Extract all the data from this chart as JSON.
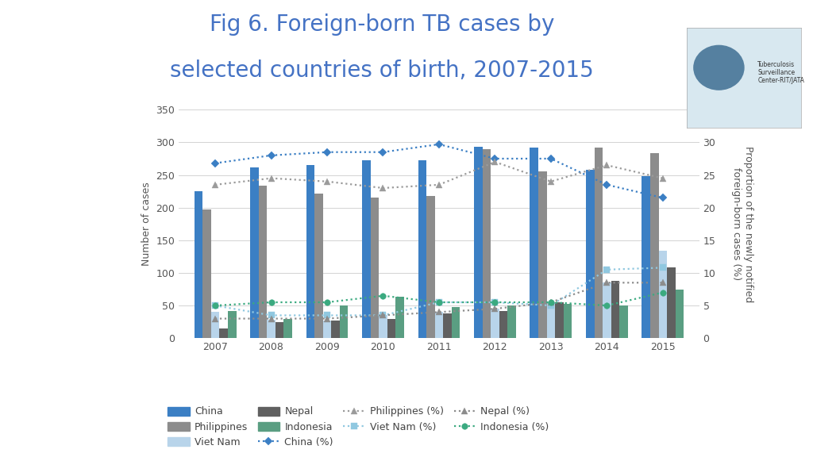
{
  "years": [
    2007,
    2008,
    2009,
    2010,
    2011,
    2012,
    2013,
    2014,
    2015
  ],
  "china": [
    225,
    262,
    265,
    272,
    272,
    293,
    292,
    258,
    248
  ],
  "philippines": [
    197,
    234,
    222,
    215,
    218,
    290,
    255,
    292,
    283
  ],
  "viet_nam": [
    40,
    28,
    27,
    35,
    40,
    45,
    52,
    85,
    134
  ],
  "nepal": [
    15,
    25,
    27,
    30,
    38,
    42,
    55,
    88,
    108
  ],
  "indonesia": [
    42,
    30,
    50,
    63,
    48,
    50,
    52,
    50,
    75
  ],
  "china_pct": [
    26.8,
    28.0,
    28.5,
    28.5,
    29.7,
    27.5,
    27.5,
    23.5,
    21.5
  ],
  "philippines_pct": [
    23.5,
    24.5,
    24.0,
    23.0,
    23.5,
    27.0,
    24.0,
    26.5,
    24.5
  ],
  "viet_nam_pct": [
    5.0,
    3.5,
    3.5,
    3.5,
    5.5,
    5.5,
    5.0,
    10.5,
    10.8
  ],
  "nepal_pct": [
    3.0,
    3.0,
    3.0,
    3.5,
    4.0,
    4.5,
    5.5,
    8.5,
    8.5
  ],
  "indonesia_pct": [
    5.0,
    5.5,
    5.5,
    6.5,
    5.5,
    5.5,
    5.5,
    5.0,
    7.0
  ],
  "bar_width": 0.15,
  "title_line1": "Fig 6. Foreign-born TB cases by",
  "title_line2": "selected countries of birth, 2007-2015",
  "ylabel_left": "Number of cases",
  "ylabel_right": "Proportion of the newly notified\nforeign-born cases (%)",
  "ylim_left": [
    0,
    350
  ],
  "ylim_right": [
    0.0,
    35.0
  ],
  "yticks_left": [
    0,
    50,
    100,
    150,
    200,
    250,
    300,
    350
  ],
  "yticks_right": [
    0.0,
    5.0,
    10.0,
    15.0,
    20.0,
    25.0,
    30.0,
    35.0
  ],
  "color_china": "#3B7FC4",
  "color_philippines": "#8C8C8C",
  "color_viet_nam": "#B8D4EA",
  "color_nepal": "#606060",
  "color_indonesia": "#5A9E82",
  "color_china_pct": "#3B7FC4",
  "color_philippines_pct": "#9B9B9B",
  "color_viet_nam_pct": "#90C8E0",
  "color_nepal_pct": "#8C8C8C",
  "color_indonesia_pct": "#3BAA80",
  "bg_color": "#FFFFFF",
  "title_color": "#4472C4",
  "title_fontsize": 20,
  "axis_label_fontsize": 9,
  "tick_fontsize": 9,
  "legend_fontsize": 9,
  "logo_text": "Tuberculosis\nSurveillance\nCenter-RIT/JATA",
  "logo_bg": "#D8E8F0"
}
